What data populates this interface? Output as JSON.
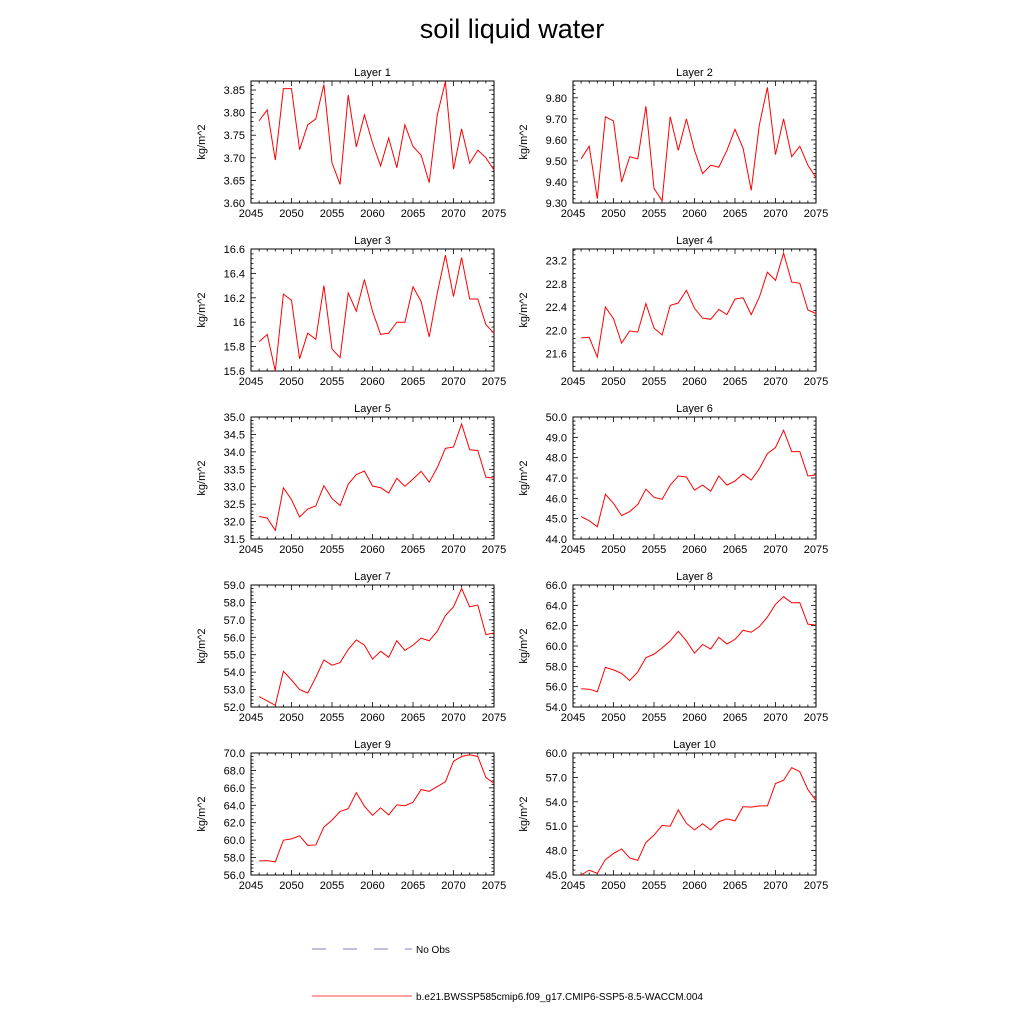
{
  "figure": {
    "title": "soil liquid water"
  },
  "legend": {
    "items": [
      {
        "label": "No Obs",
        "style": "dashed",
        "color": "#5a5aa0"
      },
      {
        "label": "b.e21.BWSSP585cmip6.f09_g17.CMIP6-SSP5-8.5-WACCM.004",
        "style": "solid",
        "color": "#ff0000"
      }
    ]
  },
  "colors": {
    "series": "#ff0000",
    "axis": "#000000"
  },
  "chart_data": [
    {
      "type": "line",
      "title": "Layer 1",
      "ylabel": "kg/m^2",
      "xlim": [
        2045,
        2075
      ],
      "ylim": [
        3.6,
        3.87
      ],
      "xticks": [
        2045,
        2050,
        2055,
        2060,
        2065,
        2070,
        2075
      ],
      "yticks": [
        3.6,
        3.65,
        3.7,
        3.75,
        3.8,
        3.85
      ],
      "ytick_labels": [
        "3.60",
        "3.65",
        "3.70",
        "3.75",
        "3.80",
        "3.85"
      ],
      "x": [
        2046,
        2047,
        2048,
        2049,
        2050,
        2051,
        2052,
        2053,
        2054,
        2055,
        2056,
        2057,
        2058,
        2059,
        2060,
        2061,
        2062,
        2063,
        2064,
        2065,
        2066,
        2067,
        2068,
        2069,
        2070,
        2071,
        2072,
        2073,
        2074,
        2075
      ],
      "series": [
        {
          "values": [
            3.782,
            3.806,
            3.695,
            3.853,
            3.853,
            3.718,
            3.773,
            3.786,
            3.862,
            3.689,
            3.641,
            3.839,
            3.724,
            3.795,
            3.733,
            3.682,
            3.744,
            3.678,
            3.773,
            3.725,
            3.706,
            3.645,
            3.795,
            3.868,
            3.675,
            3.764,
            3.688,
            3.717,
            3.7,
            3.673
          ]
        }
      ]
    },
    {
      "type": "line",
      "title": "Layer 2",
      "ylabel": "kg/m^2",
      "xlim": [
        2045,
        2075
      ],
      "ylim": [
        9.3,
        9.88
      ],
      "xticks": [
        2045,
        2050,
        2055,
        2060,
        2065,
        2070,
        2075
      ],
      "yticks": [
        9.3,
        9.4,
        9.5,
        9.6,
        9.7,
        9.8
      ],
      "ytick_labels": [
        "9.30",
        "9.40",
        "9.50",
        "9.60",
        "9.70",
        "9.80"
      ],
      "x": [
        2046,
        2047,
        2048,
        2049,
        2050,
        2051,
        2052,
        2053,
        2054,
        2055,
        2056,
        2057,
        2058,
        2059,
        2060,
        2061,
        2062,
        2063,
        2064,
        2065,
        2066,
        2067,
        2068,
        2069,
        2070,
        2071,
        2072,
        2073,
        2074,
        2075
      ],
      "series": [
        {
          "values": [
            9.51,
            9.57,
            9.32,
            9.71,
            9.69,
            9.4,
            9.52,
            9.51,
            9.76,
            9.37,
            9.31,
            9.71,
            9.55,
            9.7,
            9.55,
            9.44,
            9.48,
            9.47,
            9.55,
            9.65,
            9.56,
            9.36,
            9.67,
            9.85,
            9.53,
            9.7,
            9.52,
            9.57,
            9.48,
            9.42
          ]
        }
      ]
    },
    {
      "type": "line",
      "title": "Layer 3",
      "ylabel": "kg/m^2",
      "xlim": [
        2045,
        2075
      ],
      "ylim": [
        15.6,
        16.6
      ],
      "xticks": [
        2045,
        2050,
        2055,
        2060,
        2065,
        2070,
        2075
      ],
      "yticks": [
        15.6,
        15.8,
        16.0,
        16.2,
        16.4,
        16.6
      ],
      "ytick_labels": [
        "15.6",
        "15.8",
        "16",
        "16.2",
        "16.4",
        "16.6"
      ],
      "x": [
        2046,
        2047,
        2048,
        2049,
        2050,
        2051,
        2052,
        2053,
        2054,
        2055,
        2056,
        2057,
        2058,
        2059,
        2060,
        2061,
        2062,
        2063,
        2064,
        2065,
        2066,
        2067,
        2068,
        2069,
        2070,
        2071,
        2072,
        2073,
        2074,
        2075
      ],
      "series": [
        {
          "values": [
            15.84,
            15.9,
            15.6,
            16.23,
            16.18,
            15.7,
            15.91,
            15.86,
            16.3,
            15.78,
            15.71,
            16.24,
            16.09,
            16.35,
            16.09,
            15.9,
            15.91,
            16.0,
            16.0,
            16.29,
            16.17,
            15.88,
            16.24,
            16.55,
            16.21,
            16.53,
            16.19,
            16.19,
            15.98,
            15.91
          ]
        }
      ]
    },
    {
      "type": "line",
      "title": "Layer 4",
      "ylabel": "kg/m^2",
      "xlim": [
        2045,
        2075
      ],
      "ylim": [
        21.3,
        23.4
      ],
      "xticks": [
        2045,
        2050,
        2055,
        2060,
        2065,
        2070,
        2075
      ],
      "yticks": [
        21.6,
        22.0,
        22.4,
        22.8,
        23.2
      ],
      "ytick_labels": [
        "21.6",
        "22.0",
        "22.4",
        "22.8",
        "23.2"
      ],
      "x": [
        2046,
        2047,
        2048,
        2049,
        2050,
        2051,
        2052,
        2053,
        2054,
        2055,
        2056,
        2057,
        2058,
        2059,
        2060,
        2061,
        2062,
        2063,
        2064,
        2065,
        2066,
        2067,
        2068,
        2069,
        2070,
        2071,
        2072,
        2073,
        2074,
        2075
      ],
      "series": [
        {
          "values": [
            21.87,
            21.88,
            21.54,
            22.4,
            22.2,
            21.78,
            21.99,
            21.97,
            22.46,
            22.04,
            21.92,
            22.43,
            22.47,
            22.69,
            22.38,
            22.21,
            22.19,
            22.36,
            22.27,
            22.54,
            22.56,
            22.27,
            22.57,
            23.0,
            22.86,
            23.33,
            22.83,
            22.81,
            22.35,
            22.29
          ]
        }
      ]
    },
    {
      "type": "line",
      "title": "Layer 5",
      "ylabel": "kg/m^2",
      "xlim": [
        2045,
        2075
      ],
      "ylim": [
        31.5,
        35.0
      ],
      "xticks": [
        2045,
        2050,
        2055,
        2060,
        2065,
        2070,
        2075
      ],
      "yticks": [
        31.5,
        32.0,
        32.5,
        33.0,
        33.5,
        34.0,
        34.5,
        35.0
      ],
      "ytick_labels": [
        "31.5",
        "32.0",
        "32.5",
        "33.0",
        "33.5",
        "34.0",
        "34.5",
        "35.0"
      ],
      "x": [
        2046,
        2047,
        2048,
        2049,
        2050,
        2051,
        2052,
        2053,
        2054,
        2055,
        2056,
        2057,
        2058,
        2059,
        2060,
        2061,
        2062,
        2063,
        2064,
        2065,
        2066,
        2067,
        2068,
        2069,
        2070,
        2071,
        2072,
        2073,
        2074,
        2075
      ],
      "series": [
        {
          "values": [
            32.15,
            32.1,
            31.75,
            32.97,
            32.63,
            32.13,
            32.36,
            32.45,
            33.03,
            32.66,
            32.46,
            33.07,
            33.35,
            33.45,
            33.02,
            32.97,
            32.82,
            33.24,
            33.01,
            33.22,
            33.44,
            33.13,
            33.55,
            34.1,
            34.14,
            34.8,
            34.06,
            34.04,
            33.27,
            33.25
          ]
        }
      ]
    },
    {
      "type": "line",
      "title": "Layer 6",
      "ylabel": "kg/m^2",
      "xlim": [
        2045,
        2075
      ],
      "ylim": [
        44.0,
        50.0
      ],
      "xticks": [
        2045,
        2050,
        2055,
        2060,
        2065,
        2070,
        2075
      ],
      "yticks": [
        44.0,
        45.0,
        46.0,
        47.0,
        48.0,
        49.0,
        50.0
      ],
      "ytick_labels": [
        "44.0",
        "45.0",
        "46.0",
        "47.0",
        "48.0",
        "49.0",
        "50.0"
      ],
      "x": [
        2046,
        2047,
        2048,
        2049,
        2050,
        2051,
        2052,
        2053,
        2054,
        2055,
        2056,
        2057,
        2058,
        2059,
        2060,
        2061,
        2062,
        2063,
        2064,
        2065,
        2066,
        2067,
        2068,
        2069,
        2070,
        2071,
        2072,
        2073,
        2074,
        2075
      ],
      "series": [
        {
          "values": [
            45.1,
            44.9,
            44.6,
            46.2,
            45.75,
            45.15,
            45.35,
            45.7,
            46.45,
            46.05,
            45.95,
            46.65,
            47.1,
            47.05,
            46.4,
            46.65,
            46.35,
            47.1,
            46.65,
            46.85,
            47.2,
            46.9,
            47.45,
            48.2,
            48.5,
            49.35,
            48.3,
            48.3,
            47.1,
            47.15
          ]
        }
      ]
    },
    {
      "type": "line",
      "title": "Layer 7",
      "ylabel": "kg/m^2",
      "xlim": [
        2045,
        2075
      ],
      "ylim": [
        52.0,
        59.0
      ],
      "xticks": [
        2045,
        2050,
        2055,
        2060,
        2065,
        2070,
        2075
      ],
      "yticks": [
        52.0,
        53.0,
        54.0,
        55.0,
        56.0,
        57.0,
        58.0,
        59.0
      ],
      "ytick_labels": [
        "52.0",
        "53.0",
        "54.0",
        "55.0",
        "56.0",
        "57.0",
        "58.0",
        "59.0"
      ],
      "x": [
        2046,
        2047,
        2048,
        2049,
        2050,
        2051,
        2052,
        2053,
        2054,
        2055,
        2056,
        2057,
        2058,
        2059,
        2060,
        2061,
        2062,
        2063,
        2064,
        2065,
        2066,
        2067,
        2068,
        2069,
        2070,
        2071,
        2072,
        2073,
        2074,
        2075
      ],
      "series": [
        {
          "values": [
            52.6,
            52.35,
            52.1,
            54.05,
            53.55,
            53.0,
            52.8,
            53.7,
            54.7,
            54.4,
            54.55,
            55.3,
            55.85,
            55.55,
            54.75,
            55.2,
            54.85,
            55.8,
            55.25,
            55.55,
            55.95,
            55.8,
            56.35,
            57.25,
            57.75,
            58.8,
            57.75,
            57.85,
            56.15,
            56.25
          ]
        }
      ]
    },
    {
      "type": "line",
      "title": "Layer 8",
      "ylabel": "kg/m^2",
      "xlim": [
        2045,
        2075
      ],
      "ylim": [
        54.0,
        66.0
      ],
      "xticks": [
        2045,
        2050,
        2055,
        2060,
        2065,
        2070,
        2075
      ],
      "yticks": [
        54.0,
        56.0,
        58.0,
        60.0,
        62.0,
        64.0,
        66.0
      ],
      "ytick_labels": [
        "54.0",
        "56.0",
        "58.0",
        "60.0",
        "62.0",
        "64.0",
        "66.0"
      ],
      "x": [
        2046,
        2047,
        2048,
        2049,
        2050,
        2051,
        2052,
        2053,
        2054,
        2055,
        2056,
        2057,
        2058,
        2059,
        2060,
        2061,
        2062,
        2063,
        2064,
        2065,
        2066,
        2067,
        2068,
        2069,
        2070,
        2071,
        2072,
        2073,
        2074,
        2075
      ],
      "series": [
        {
          "values": [
            55.8,
            55.75,
            55.5,
            57.9,
            57.65,
            57.3,
            56.6,
            57.45,
            58.85,
            59.2,
            59.8,
            60.5,
            61.45,
            60.5,
            59.3,
            60.15,
            59.7,
            60.85,
            60.2,
            60.65,
            61.55,
            61.35,
            61.9,
            62.85,
            64.1,
            64.85,
            64.25,
            64.25,
            62.15,
            62.05
          ]
        }
      ]
    },
    {
      "type": "line",
      "title": "Layer 9",
      "ylabel": "kg/m^2",
      "xlim": [
        2045,
        2075
      ],
      "ylim": [
        56.0,
        70.0
      ],
      "xticks": [
        2045,
        2050,
        2055,
        2060,
        2065,
        2070,
        2075
      ],
      "yticks": [
        56.0,
        58.0,
        60.0,
        62.0,
        64.0,
        66.0,
        68.0,
        70.0
      ],
      "ytick_labels": [
        "56.0",
        "58.0",
        "60.0",
        "62.0",
        "64.0",
        "66.0",
        "68.0",
        "70.0"
      ],
      "x": [
        2046,
        2047,
        2048,
        2049,
        2050,
        2051,
        2052,
        2053,
        2054,
        2055,
        2056,
        2057,
        2058,
        2059,
        2060,
        2061,
        2062,
        2063,
        2064,
        2065,
        2066,
        2067,
        2068,
        2069,
        2070,
        2071,
        2072,
        2073,
        2074,
        2075
      ],
      "series": [
        {
          "values": [
            57.6,
            57.65,
            57.5,
            60.0,
            60.15,
            60.5,
            59.4,
            59.45,
            61.5,
            62.3,
            63.3,
            63.6,
            65.45,
            63.9,
            62.85,
            63.7,
            62.9,
            64.05,
            63.95,
            64.35,
            65.8,
            65.6,
            66.15,
            66.7,
            69.05,
            69.6,
            69.8,
            69.6,
            67.2,
            66.5
          ]
        }
      ]
    },
    {
      "type": "line",
      "title": "Layer 10",
      "ylabel": "kg/m^2",
      "xlim": [
        2045,
        2075
      ],
      "ylim": [
        45.0,
        60.0
      ],
      "xticks": [
        2045,
        2050,
        2055,
        2060,
        2065,
        2070,
        2075
      ],
      "yticks": [
        45.0,
        48.0,
        51.0,
        54.0,
        57.0,
        60.0
      ],
      "ytick_labels": [
        "45.0",
        "48.0",
        "51.0",
        "54.0",
        "57.0",
        "60.0"
      ],
      "x": [
        2046,
        2047,
        2048,
        2049,
        2050,
        2051,
        2052,
        2053,
        2054,
        2055,
        2056,
        2057,
        2058,
        2059,
        2060,
        2061,
        2062,
        2063,
        2064,
        2065,
        2066,
        2067,
        2068,
        2069,
        2070,
        2071,
        2072,
        2073,
        2074,
        2075
      ],
      "series": [
        {
          "values": [
            45.0,
            45.6,
            45.2,
            46.9,
            47.65,
            48.2,
            47.1,
            46.8,
            49.0,
            49.9,
            51.1,
            51.0,
            53.0,
            51.35,
            50.55,
            51.3,
            50.55,
            51.55,
            51.9,
            51.65,
            53.4,
            53.35,
            53.5,
            53.5,
            56.25,
            56.65,
            58.2,
            57.7,
            55.5,
            54.15
          ]
        }
      ]
    }
  ]
}
